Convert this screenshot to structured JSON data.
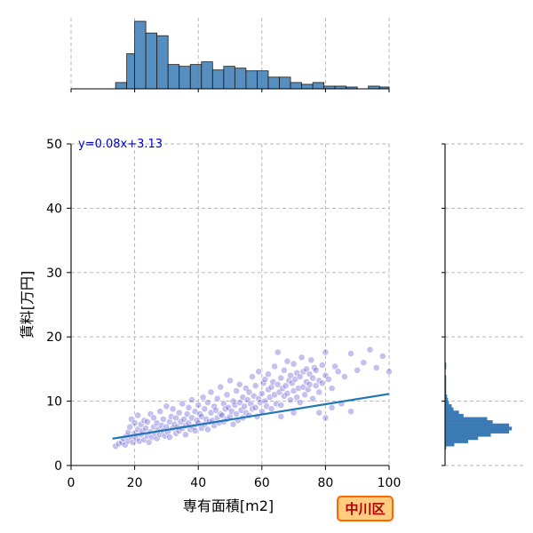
{
  "chart_data": {
    "type": "scatter",
    "title": "",
    "xlabel": "専有面積[m2]",
    "ylabel": "賃料[万円]",
    "xlim": [
      0,
      100
    ],
    "ylim": [
      0,
      50
    ],
    "x_ticks": [
      0,
      20,
      40,
      60,
      80,
      100
    ],
    "y_ticks": [
      0,
      10,
      20,
      30,
      40,
      50
    ],
    "grid": true,
    "point_color": "#4b3fc9",
    "line_color": "#1f77b4",
    "hist_color": "#3a7ab5",
    "equation": "y=0.08x+3.13",
    "badge": "中川区",
    "badge_fill": "#ffcc80",
    "badge_border": "#ff6600",
    "regression": {
      "slope": 0.08,
      "intercept": 3.13,
      "x_start": 13,
      "x_end": 100
    },
    "x_hist": {
      "bin_edges": [
        14,
        17.5,
        20,
        23.5,
        27,
        30.5,
        34,
        37.5,
        41,
        44.5,
        48,
        51.5,
        55,
        58.5,
        62,
        65.5,
        69,
        72.5,
        76,
        79.5,
        83,
        86.5,
        90,
        93.5,
        97,
        100
      ],
      "counts": [
        7,
        39,
        75,
        62,
        59,
        27,
        25,
        27,
        30,
        21,
        25,
        23,
        20,
        20,
        13,
        13,
        7,
        5,
        7,
        3,
        3,
        2,
        0,
        3,
        2
      ]
    },
    "y_hist": {
      "bin_edges": [
        2,
        2.5,
        3,
        3.5,
        4,
        4.5,
        5,
        5.5,
        6,
        6.5,
        7,
        7.5,
        8,
        8.5,
        9,
        9.5,
        10,
        10.5,
        11,
        11.5,
        12,
        12.5,
        13,
        14,
        15,
        16,
        17,
        18
      ],
      "counts": [
        0,
        1,
        10,
        25,
        36,
        50,
        70,
        73,
        70,
        52,
        46,
        20,
        15,
        9,
        7,
        4,
        3,
        2,
        1,
        1,
        1,
        1,
        1,
        0,
        1,
        0,
        0
      ]
    },
    "points": [
      [
        14,
        3
      ],
      [
        15,
        3.4
      ],
      [
        16,
        3.6
      ],
      [
        16.5,
        4.2
      ],
      [
        17,
        3.2
      ],
      [
        17.5,
        4.6
      ],
      [
        18,
        3.8
      ],
      [
        18,
        5.2
      ],
      [
        18.5,
        6
      ],
      [
        19,
        4.4
      ],
      [
        19,
        7.2
      ],
      [
        19.5,
        3.6
      ],
      [
        20,
        5
      ],
      [
        20,
        6.6
      ],
      [
        20.5,
        4.2
      ],
      [
        21,
        5.6
      ],
      [
        21,
        7.8
      ],
      [
        21.5,
        3.8
      ],
      [
        22,
        4.8
      ],
      [
        22,
        6.4
      ],
      [
        22.5,
        5.4
      ],
      [
        23,
        4
      ],
      [
        23,
        7
      ],
      [
        23.5,
        5.8
      ],
      [
        24,
        4.6
      ],
      [
        24,
        6.8
      ],
      [
        24.5,
        3.6
      ],
      [
        25,
        5.2
      ],
      [
        25,
        8
      ],
      [
        25.5,
        4.4
      ],
      [
        26,
        6
      ],
      [
        26,
        7.4
      ],
      [
        26.5,
        5
      ],
      [
        27,
        4.2
      ],
      [
        27,
        6.6
      ],
      [
        27.5,
        5.6
      ],
      [
        28,
        4.8
      ],
      [
        28,
        8.4
      ],
      [
        28.5,
        6.2
      ],
      [
        29,
        5.4
      ],
      [
        29,
        7.2
      ],
      [
        29.5,
        4.6
      ],
      [
        30,
        6
      ],
      [
        30,
        9.2
      ],
      [
        30.5,
        5.2
      ],
      [
        31,
        6.8
      ],
      [
        31,
        4.4
      ],
      [
        31.5,
        7.6
      ],
      [
        32,
        5.8
      ],
      [
        32,
        8.8
      ],
      [
        32.5,
        6.4
      ],
      [
        33,
        5
      ],
      [
        33,
        7.4
      ],
      [
        33.5,
        6
      ],
      [
        34,
        5.4
      ],
      [
        34,
        8.2
      ],
      [
        34.5,
        6.8
      ],
      [
        35,
        5.8
      ],
      [
        35,
        9.6
      ],
      [
        35.5,
        7.2
      ],
      [
        36,
        6.2
      ],
      [
        36,
        4.8
      ],
      [
        36.5,
        8
      ],
      [
        37,
        6.6
      ],
      [
        37,
        9
      ],
      [
        37.5,
        5.6
      ],
      [
        38,
        7.4
      ],
      [
        38,
        10.2
      ],
      [
        38.5,
        6
      ],
      [
        39,
        8.4
      ],
      [
        39,
        5.4
      ],
      [
        39.5,
        7
      ],
      [
        40,
        6.6
      ],
      [
        40,
        9.4
      ],
      [
        40.5,
        8
      ],
      [
        41,
        5.8
      ],
      [
        41,
        7.6
      ],
      [
        41.5,
        10.6
      ],
      [
        42,
        6.4
      ],
      [
        42,
        8.8
      ],
      [
        42.5,
        7.2
      ],
      [
        43,
        5.6
      ],
      [
        43,
        9.8
      ],
      [
        43.5,
        6.8
      ],
      [
        44,
        8.2
      ],
      [
        44,
        11.4
      ],
      [
        44.5,
        7
      ],
      [
        45,
        6.2
      ],
      [
        45,
        9.2
      ],
      [
        45.5,
        8.6
      ],
      [
        46,
        7.4
      ],
      [
        46,
        10.4
      ],
      [
        46.5,
        6.6
      ],
      [
        47,
        8
      ],
      [
        47,
        12.2
      ],
      [
        47.5,
        7.8
      ],
      [
        48,
        9.6
      ],
      [
        48,
        6.8
      ],
      [
        48.5,
        8.8
      ],
      [
        49,
        7.2
      ],
      [
        49,
        11
      ],
      [
        49.5,
        9
      ],
      [
        50,
        7.6
      ],
      [
        50,
        13.2
      ],
      [
        50.5,
        8.4
      ],
      [
        51,
        10
      ],
      [
        51,
        6.4
      ],
      [
        51.5,
        9.4
      ],
      [
        52,
        8
      ],
      [
        52,
        11.6
      ],
      [
        52.5,
        7
      ],
      [
        53,
        9.8
      ],
      [
        53,
        12.6
      ],
      [
        53.5,
        8.6
      ],
      [
        54,
        10.6
      ],
      [
        54,
        7.4
      ],
      [
        54.5,
        9.2
      ],
      [
        55,
        8.2
      ],
      [
        55,
        12
      ],
      [
        55.5,
        10.2
      ],
      [
        56,
        7.8
      ],
      [
        56,
        11.4
      ],
      [
        56.5,
        9.6
      ],
      [
        57,
        8.8
      ],
      [
        57,
        13.8
      ],
      [
        57.5,
        10.8
      ],
      [
        58,
        9
      ],
      [
        58,
        12.4
      ],
      [
        58.5,
        7.6
      ],
      [
        59,
        10.4
      ],
      [
        59,
        14.6
      ],
      [
        59.5,
        9.8
      ],
      [
        60,
        11.2
      ],
      [
        60,
        8.4
      ],
      [
        60.5,
        12.8
      ],
      [
        61,
        10
      ],
      [
        61,
        13.4
      ],
      [
        61.5,
        9.2
      ],
      [
        62,
        11.8
      ],
      [
        62,
        14.2
      ],
      [
        62.5,
        10.6
      ],
      [
        63,
        12.2
      ],
      [
        63,
        8.8
      ],
      [
        63.5,
        13
      ],
      [
        64,
        11
      ],
      [
        64,
        15.4
      ],
      [
        64.5,
        9.6
      ],
      [
        65,
        12.6
      ],
      [
        65,
        17.6
      ],
      [
        65.5,
        11.4
      ],
      [
        66,
        13.6
      ],
      [
        66,
        9.4
      ],
      [
        66.5,
        12
      ],
      [
        67,
        14.8
      ],
      [
        67,
        10.8
      ],
      [
        67.5,
        12.4
      ],
      [
        68,
        11.2
      ],
      [
        68,
        16.2
      ],
      [
        68.5,
        13.2
      ],
      [
        69,
        10.2
      ],
      [
        69,
        14
      ],
      [
        69.5,
        12.8
      ],
      [
        70,
        11.6
      ],
      [
        70,
        15.8
      ],
      [
        70.5,
        13.4
      ],
      [
        71,
        10.6
      ],
      [
        71,
        14.4
      ],
      [
        71.5,
        12
      ],
      [
        72,
        13.8
      ],
      [
        72,
        9.8
      ],
      [
        72.5,
        16.8
      ],
      [
        73,
        12.2
      ],
      [
        73,
        14.6
      ],
      [
        73.5,
        11
      ],
      [
        74,
        13
      ],
      [
        74,
        15
      ],
      [
        74.5,
        11.8
      ],
      [
        75,
        14.2
      ],
      [
        75,
        12.6
      ],
      [
        75.5,
        16.4
      ],
      [
        76,
        13.6
      ],
      [
        76,
        10.4
      ],
      [
        76.5,
        15.2
      ],
      [
        77,
        12.4
      ],
      [
        77,
        14.8
      ],
      [
        78,
        13.2
      ],
      [
        78,
        11.4
      ],
      [
        79,
        15.6
      ],
      [
        79,
        12.8
      ],
      [
        80,
        14
      ],
      [
        80,
        17.6
      ],
      [
        81,
        13.4
      ],
      [
        82,
        12
      ],
      [
        83,
        15.4
      ],
      [
        84,
        14.6
      ],
      [
        86,
        13.8
      ],
      [
        88,
        17.4
      ],
      [
        90,
        14.8
      ],
      [
        92,
        16
      ],
      [
        94,
        18
      ],
      [
        96,
        15.2
      ],
      [
        98,
        17
      ],
      [
        100,
        14.6
      ],
      [
        85,
        9.6
      ],
      [
        88,
        8.4
      ],
      [
        80,
        7.4
      ],
      [
        78,
        8.2
      ],
      [
        82,
        9
      ],
      [
        70,
        8.2
      ],
      [
        66,
        7.6
      ]
    ]
  }
}
